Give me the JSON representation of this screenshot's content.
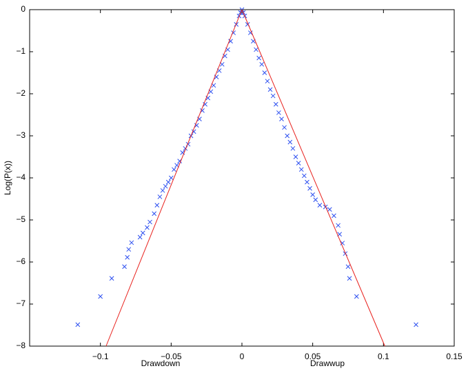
{
  "chart_data": {
    "type": "scatter",
    "xlabel_left": "Drawdown",
    "xlabel_right": "Drawwup",
    "ylabel": "Log(P(x))",
    "xlim": [
      -0.15,
      0.15
    ],
    "xticks": [
      {
        "value": -0.1,
        "label": "−0.1"
      },
      {
        "value": -0.05,
        "label": "−0.05"
      },
      0,
      0.05,
      0.1,
      0.15
    ],
    "ylim": [
      -8,
      0
    ],
    "yticks": [
      {
        "value": -8,
        "label": "−8"
      },
      {
        "value": -7,
        "label": "−7"
      },
      {
        "value": -6,
        "label": "−6"
      },
      {
        "value": -5,
        "label": "−5"
      },
      {
        "value": -4,
        "label": "−4"
      },
      {
        "value": -3,
        "label": "−3"
      },
      {
        "value": -2,
        "label": "−2"
      },
      {
        "value": -1,
        "label": "−1"
      },
      0
    ],
    "series": [
      {
        "style": "markers",
        "color": "#2b4ef0",
        "x": [
          -0.116,
          -0.1,
          -0.092,
          -0.083,
          -0.081,
          -0.08,
          -0.078,
          -0.072,
          -0.07,
          -0.067,
          -0.065,
          -0.062,
          -0.06,
          -0.058,
          -0.056,
          -0.054,
          -0.052,
          -0.05,
          -0.048,
          -0.046,
          -0.044,
          -0.042,
          -0.04,
          -0.038,
          -0.036,
          -0.034,
          -0.032,
          -0.03,
          -0.028,
          -0.026,
          -0.024,
          -0.022,
          -0.02,
          -0.018,
          -0.016,
          -0.014,
          -0.012,
          -0.01,
          -0.008,
          -0.006,
          -0.004,
          -0.002,
          -0.001,
          0,
          0.001,
          0.002,
          0.004,
          0.006,
          0.008,
          0.01,
          0.012,
          0.014,
          0.016,
          0.018,
          0.02,
          0.022,
          0.024,
          0.026,
          0.028,
          0.03,
          0.032,
          0.034,
          0.036,
          0.038,
          0.04,
          0.042,
          0.044,
          0.046,
          0.048,
          0.05,
          0.052,
          0.055,
          0.059,
          0.062,
          0.065,
          0.068,
          0.069,
          0.071,
          0.073,
          0.075,
          0.076,
          0.081,
          0.123
        ],
        "values": [
          -7.49,
          -6.82,
          -6.39,
          -6.11,
          -5.89,
          -5.7,
          -5.54,
          -5.41,
          -5.31,
          -5.18,
          -5.05,
          -4.85,
          -4.65,
          -4.45,
          -4.3,
          -4.2,
          -4.1,
          -4.0,
          -3.8,
          -3.7,
          -3.6,
          -3.4,
          -3.3,
          -3.2,
          -3.0,
          -2.9,
          -2.75,
          -2.6,
          -2.4,
          -2.25,
          -2.1,
          -1.95,
          -1.8,
          -1.6,
          -1.45,
          -1.3,
          -1.1,
          -0.95,
          -0.75,
          -0.55,
          -0.35,
          -0.15,
          -0.07,
          0,
          -0.07,
          -0.15,
          -0.35,
          -0.55,
          -0.75,
          -0.95,
          -1.15,
          -1.3,
          -1.5,
          -1.7,
          -1.9,
          -2.05,
          -2.25,
          -2.45,
          -2.6,
          -2.8,
          -3.0,
          -3.15,
          -3.3,
          -3.5,
          -3.65,
          -3.8,
          -3.95,
          -4.1,
          -4.25,
          -4.4,
          -4.52,
          -4.65,
          -4.69,
          -4.75,
          -4.9,
          -5.13,
          -5.34,
          -5.55,
          -5.8,
          -6.11,
          -6.39,
          -6.82,
          -7.49
        ]
      },
      {
        "style": "line",
        "color": "#e8201c",
        "x": [
          -0.096,
          0
        ],
        "values": [
          -8,
          0
        ]
      },
      {
        "style": "line",
        "color": "#e8201c",
        "x": [
          0,
          0.101
        ],
        "values": [
          0,
          -8
        ]
      }
    ]
  }
}
